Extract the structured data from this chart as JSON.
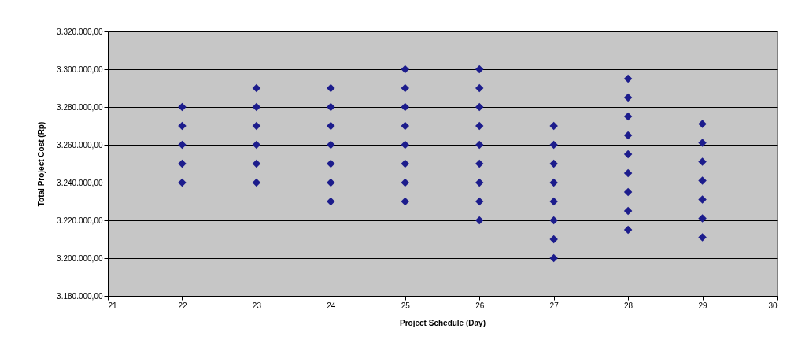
{
  "chart_data": {
    "type": "scatter",
    "xlabel": "Project Schedule (Day)",
    "ylabel": "Total Project Cost (Rp)",
    "x": [
      22,
      22,
      22,
      22,
      22,
      23,
      23,
      23,
      23,
      23,
      23,
      24,
      24,
      24,
      24,
      24,
      24,
      24,
      25,
      25,
      25,
      25,
      25,
      25,
      25,
      25,
      26,
      26,
      26,
      26,
      26,
      26,
      26,
      26,
      26,
      27,
      27,
      27,
      27,
      27,
      27,
      27,
      27,
      28,
      28,
      28,
      28,
      28,
      28,
      28,
      28,
      28,
      29,
      29,
      29,
      29,
      29,
      29,
      29
    ],
    "series": [
      {
        "color": "#1c1c8c",
        "values": [
          3280000,
          3270000,
          3260000,
          3250000,
          3240000,
          3290000,
          3280000,
          3270000,
          3260000,
          3250000,
          3240000,
          3290000,
          3280000,
          3270000,
          3260000,
          3250000,
          3240000,
          3230000,
          3300000,
          3290000,
          3280000,
          3270000,
          3260000,
          3250000,
          3240000,
          3230000,
          3300000,
          3290000,
          3280000,
          3270000,
          3260000,
          3250000,
          3240000,
          3230000,
          3220000,
          3270000,
          3260000,
          3250000,
          3240000,
          3230000,
          3220000,
          3210000,
          3200000,
          3295000,
          3285000,
          3275000,
          3265000,
          3255000,
          3245000,
          3235000,
          3225000,
          3215000,
          3271000,
          3261000,
          3251000,
          3241000,
          3231000,
          3221000,
          3211000
        ]
      }
    ],
    "xlim": [
      21,
      30
    ],
    "xticks": [
      21,
      22,
      23,
      24,
      25,
      26,
      27,
      28,
      29,
      30
    ],
    "ylim": [
      3180000,
      3320000
    ],
    "yticks": [
      {
        "value": 3180000,
        "label": "3.180.000,00"
      },
      {
        "value": 3200000,
        "label": "3.200.000,00"
      },
      {
        "value": 3220000,
        "label": "3.220.000,00"
      },
      {
        "value": 3240000,
        "label": "3.240.000,00"
      },
      {
        "value": 3260000,
        "label": "3.260.000,00"
      },
      {
        "value": 3280000,
        "label": "3.280.000,00"
      },
      {
        "value": 3300000,
        "label": "3.300.000,00"
      },
      {
        "value": 3320000,
        "label": "3.320.000,00"
      }
    ],
    "grid": "y",
    "marker": "diamond",
    "legend": false
  }
}
